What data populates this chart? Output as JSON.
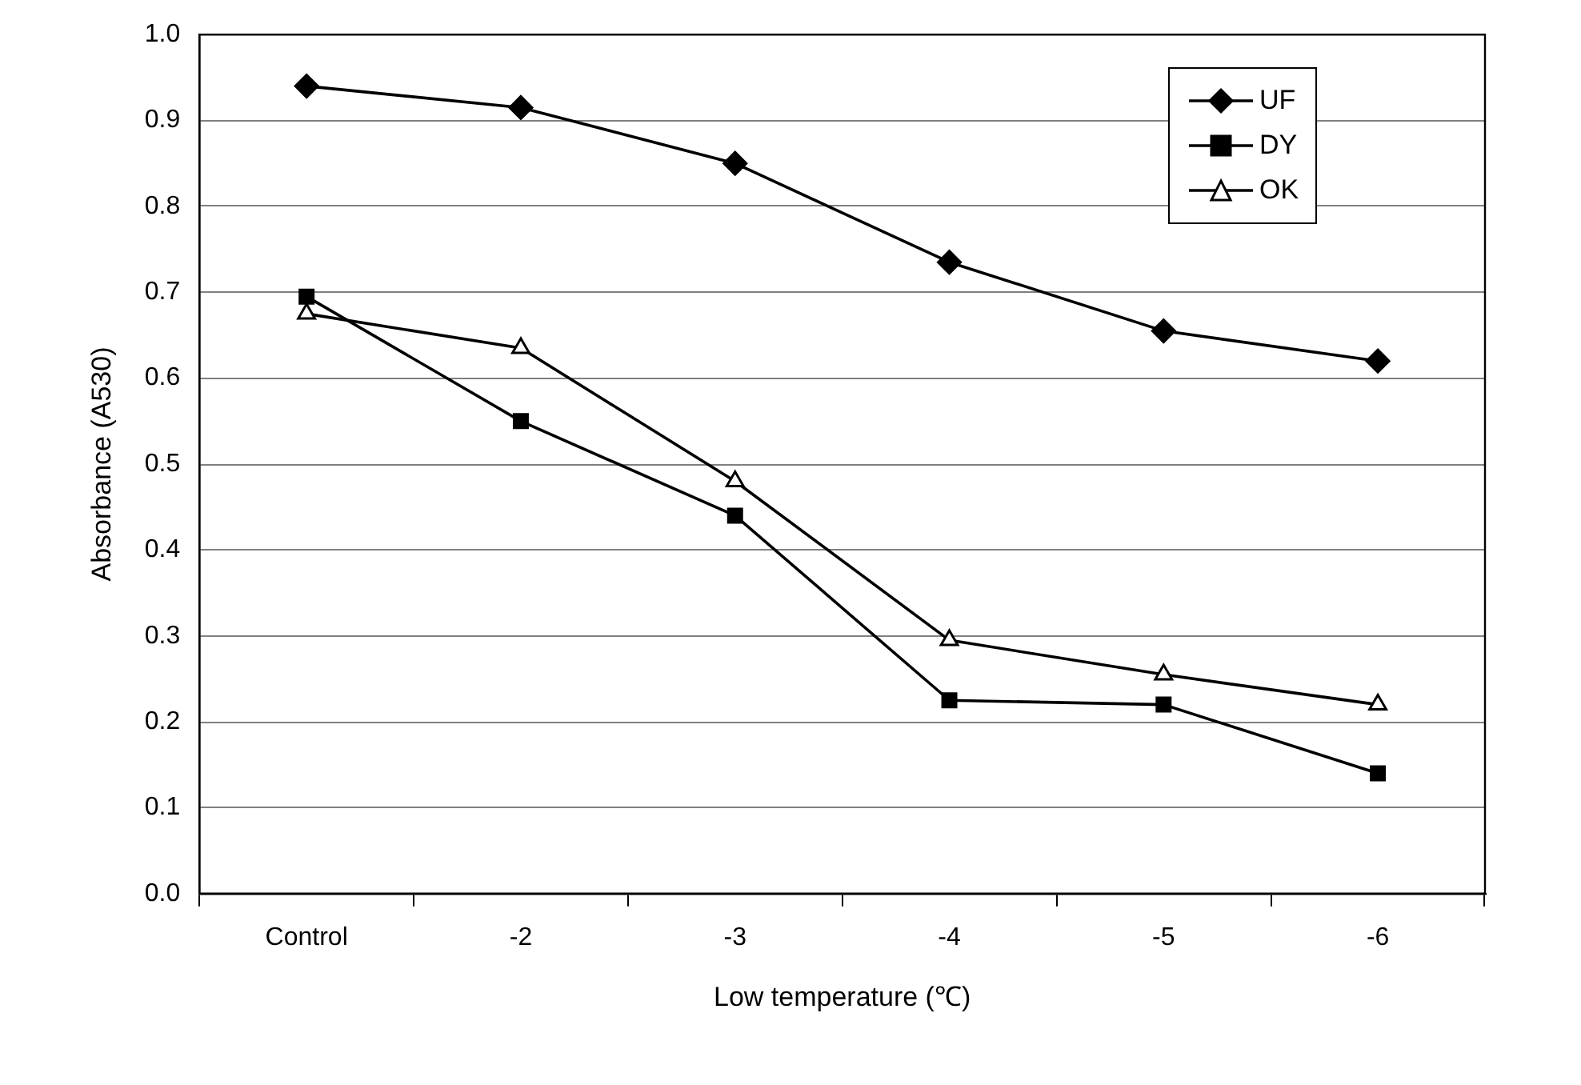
{
  "chart_data": {
    "type": "line",
    "xlabel": "Low temperature (℃)",
    "ylabel": "Absorbance (A530)",
    "categories": [
      "Control",
      "-2",
      "-3",
      "-4",
      "-5",
      "-6"
    ],
    "series": [
      {
        "name": "UF",
        "color": "#000000",
        "marker": "diamond",
        "values": [
          0.94,
          0.915,
          0.85,
          0.735,
          0.655,
          0.62
        ]
      },
      {
        "name": "DY",
        "color": "#000000",
        "marker": "square",
        "values": [
          0.695,
          0.55,
          0.44,
          0.225,
          0.22,
          0.14
        ]
      },
      {
        "name": "OK",
        "color": "#000000",
        "marker": "triangle",
        "values": [
          0.675,
          0.635,
          0.48,
          0.295,
          0.255,
          0.22
        ]
      }
    ],
    "ylim": [
      0,
      1
    ],
    "yticks": [
      {
        "value": 0,
        "label": "0.0"
      },
      0.1,
      0.2,
      0.3,
      0.4,
      0.5,
      0.6,
      0.7,
      0.8,
      0.9,
      {
        "value": 1,
        "label": "1.0"
      }
    ],
    "grid": "y",
    "legend": "top right",
    "line_style": "solid"
  }
}
